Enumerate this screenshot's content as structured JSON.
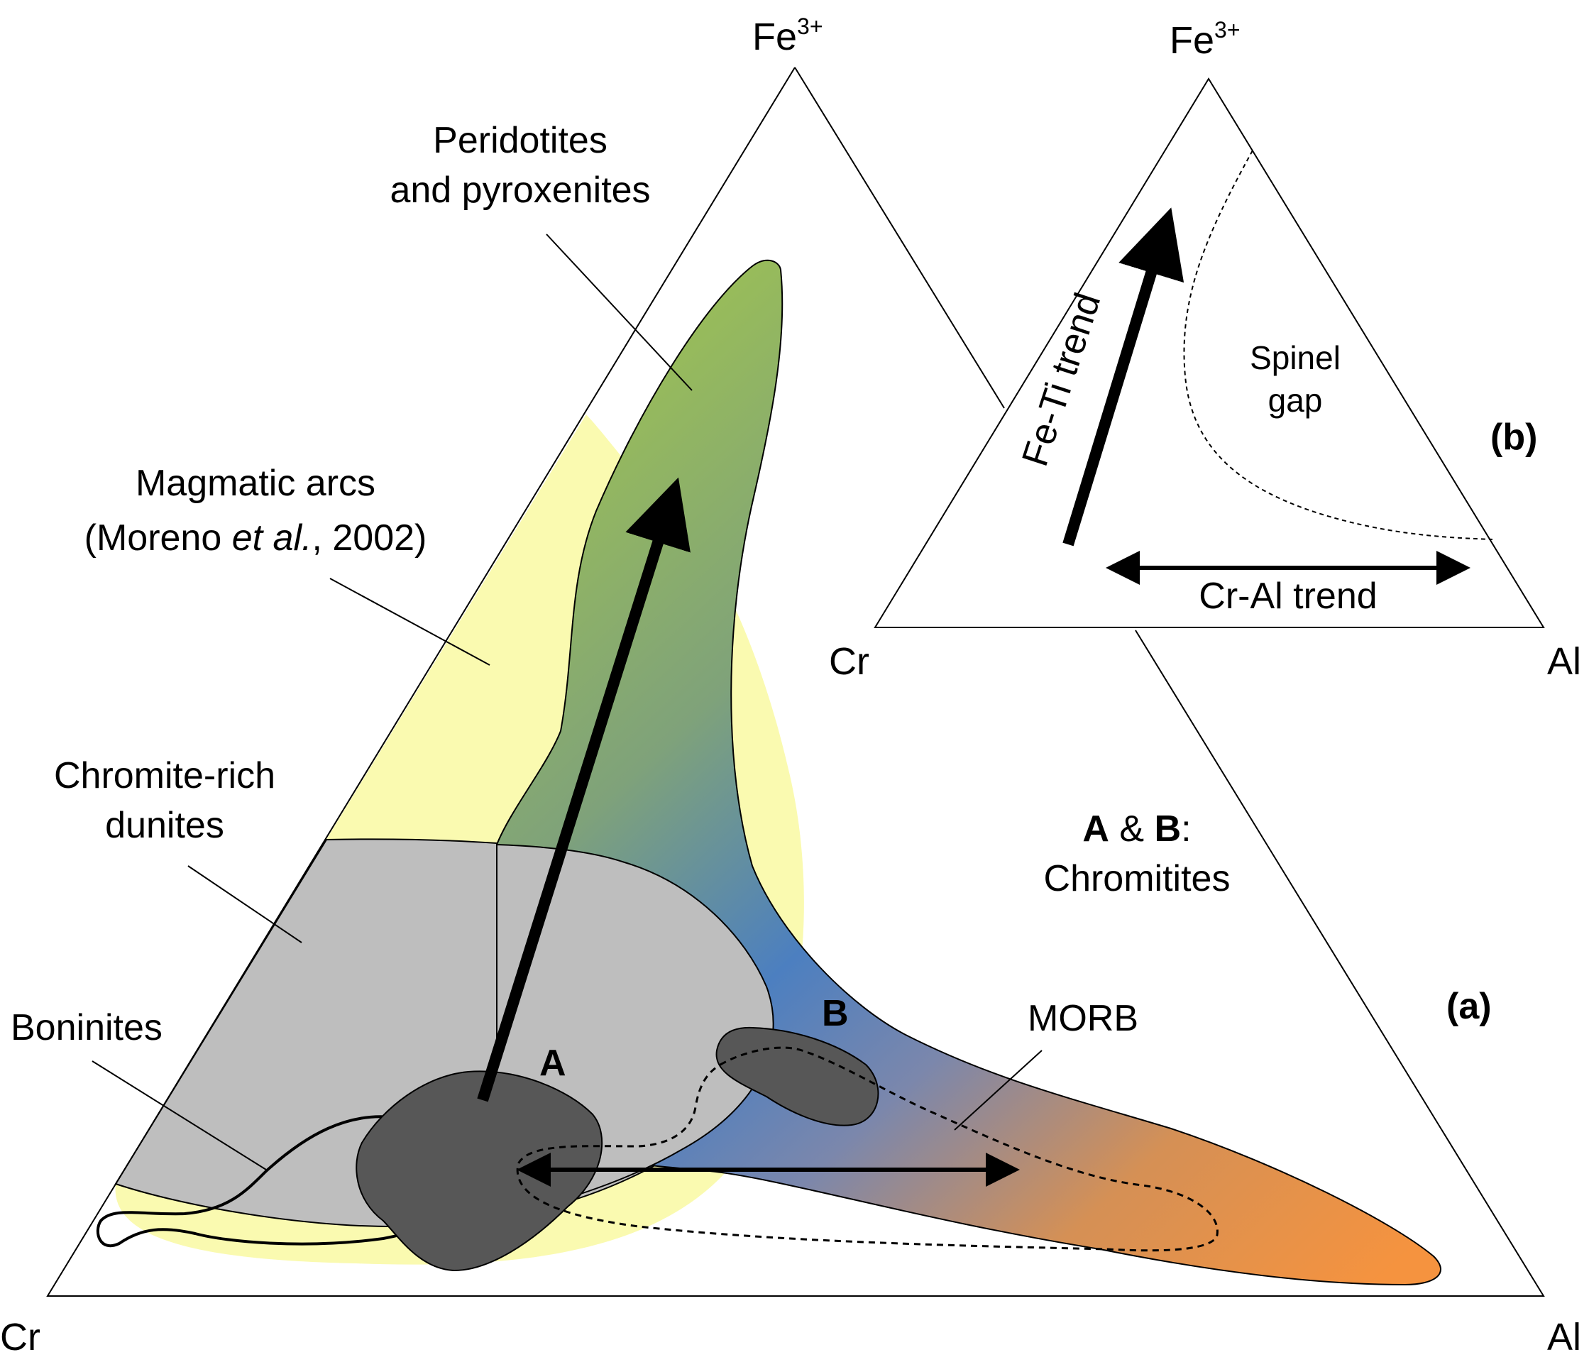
{
  "main_diagram": {
    "vertex_top": "Fe",
    "vertex_top_sup": "3+",
    "vertex_left": "Cr",
    "vertex_right": "Al",
    "panel_label": "(a)",
    "fields": {
      "peridotites_line1": "Peridotites",
      "peridotites_line2": "and pyroxenites",
      "arcs_line1": "Magmatic arcs",
      "arcs_line2_pre": "(Moreno ",
      "arcs_line2_ital": "et al.",
      "arcs_line2_post": ", 2002)",
      "dunites_line1": "Chromite-rich",
      "dunites_line2": "dunites",
      "boninites": "Boninites",
      "morb": "MORB"
    },
    "chromitites": {
      "label_a": "A",
      "label_b": "B",
      "caption_a": "A",
      "caption_amp": " & ",
      "caption_b": "B",
      "caption_colon": ":",
      "caption_line2": "Chromitites"
    }
  },
  "inset_diagram": {
    "vertex_top": "Fe",
    "vertex_top_sup": "3+",
    "vertex_left": "Cr",
    "vertex_right": "Al",
    "panel_label": "(b)",
    "fe_ti_trend": "Fe-Ti trend",
    "cr_al_trend": "Cr-Al trend",
    "spinel_gap_line1": "Spinel",
    "spinel_gap_line2": "gap"
  },
  "colors": {
    "magmatic_arcs": "#FAFAB0",
    "chromite_dunites": "#BEBEBE",
    "chromitite": "#575757",
    "gradient_top": "#9CC055",
    "gradient_mid": "#4C7FC0",
    "gradient_end": "#F5933F"
  }
}
